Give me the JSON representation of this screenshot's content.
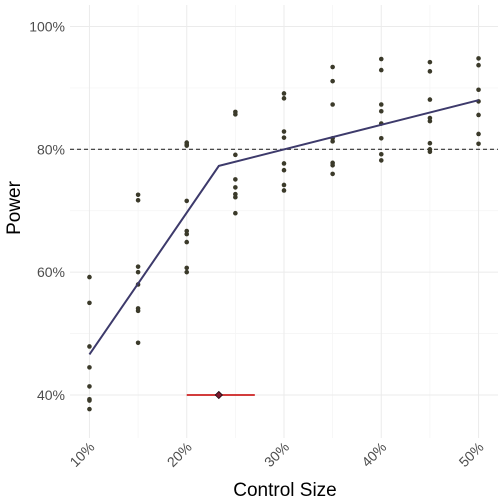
{
  "chart_data": {
    "type": "scatter",
    "xlabel": "Control Size",
    "ylabel": "Power",
    "x_ticks": [
      {
        "value": 0.1,
        "label": "10%"
      },
      {
        "value": 0.2,
        "label": "20%"
      },
      {
        "value": 0.3,
        "label": "30%"
      },
      {
        "value": 0.4,
        "label": "40%"
      },
      {
        "value": 0.5,
        "label": "50%"
      }
    ],
    "y_ticks": [
      {
        "value": 0.4,
        "label": "40%"
      },
      {
        "value": 0.6,
        "label": "60%"
      },
      {
        "value": 0.8,
        "label": "80%"
      },
      {
        "value": 1.0,
        "label": "100%"
      }
    ],
    "xlim": [
      0.08,
      0.52
    ],
    "ylim": [
      0.33,
      1.035
    ],
    "grid": true,
    "reference_line": {
      "y": 0.8,
      "style": "dashed",
      "color": "#333333"
    },
    "scatter_points": [
      {
        "x": 0.1,
        "y": [
          0.592,
          0.55,
          0.479,
          0.445,
          0.414,
          0.393,
          0.391,
          0.377
        ]
      },
      {
        "x": 0.15,
        "y": [
          0.726,
          0.717,
          0.609,
          0.6,
          0.58,
          0.541,
          0.537,
          0.485
        ]
      },
      {
        "x": 0.2,
        "y": [
          0.811,
          0.808,
          0.806,
          0.716,
          0.667,
          0.662,
          0.649,
          0.607,
          0.6
        ]
      },
      {
        "x": 0.25,
        "y": [
          0.861,
          0.857,
          0.791,
          0.751,
          0.738,
          0.727,
          0.722,
          0.696
        ]
      },
      {
        "x": 0.3,
        "y": [
          0.891,
          0.883,
          0.829,
          0.819,
          0.777,
          0.766,
          0.742,
          0.733
        ]
      },
      {
        "x": 0.35,
        "y": [
          0.934,
          0.911,
          0.873,
          0.818,
          0.813,
          0.778,
          0.774,
          0.76
        ]
      },
      {
        "x": 0.4,
        "y": [
          0.947,
          0.929,
          0.873,
          0.862,
          0.842,
          0.818,
          0.792,
          0.782
        ]
      },
      {
        "x": 0.45,
        "y": [
          0.942,
          0.927,
          0.881,
          0.851,
          0.846,
          0.81,
          0.8,
          0.796
        ]
      },
      {
        "x": 0.5,
        "y": [
          0.948,
          0.937,
          0.897,
          0.878,
          0.856,
          0.825,
          0.809
        ]
      }
    ],
    "fit_line": {
      "color": "#3d3a6b",
      "points": [
        [
          0.1,
          0.466
        ],
        [
          0.233,
          0.773
        ],
        [
          0.5,
          0.88
        ]
      ]
    },
    "estimate": {
      "x": 0.233,
      "y": 0.4,
      "interval": [
        0.2,
        0.27
      ],
      "point_color": "#7b1a2e",
      "interval_color": "#cc2020"
    },
    "point_color": "#3b3a2a"
  }
}
